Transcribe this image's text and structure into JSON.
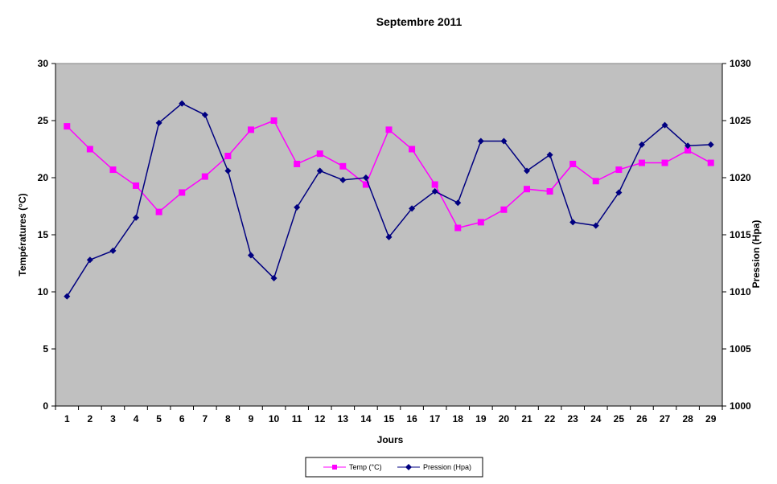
{
  "chart_data": {
    "type": "line",
    "title": "Septembre 2011",
    "xlabel": "Jours",
    "ylabel_left": "Températures (°C)",
    "ylabel_right": "Pression (Hpa)",
    "x": [
      1,
      2,
      3,
      4,
      5,
      6,
      7,
      8,
      9,
      10,
      11,
      12,
      13,
      14,
      15,
      16,
      17,
      18,
      19,
      20,
      21,
      22,
      23,
      24,
      25,
      26,
      27,
      28,
      29
    ],
    "x_tick_labels": [
      "1",
      "2",
      "3",
      "4",
      "5",
      "6",
      "7",
      "8",
      "9",
      "10",
      "11",
      "12",
      "13",
      "14",
      "15",
      "16",
      "17",
      "18",
      "19",
      "20",
      "21",
      "22",
      "23",
      "24",
      "25",
      "26",
      "27",
      "28",
      "29"
    ],
    "ylim_left": [
      0,
      30
    ],
    "y_ticks_left": [
      "0",
      "5",
      "10",
      "15",
      "20",
      "25",
      "30"
    ],
    "ylim_right": [
      1000,
      1030
    ],
    "y_ticks_right": [
      "1000",
      "1005",
      "1010",
      "1015",
      "1020",
      "1025",
      "1030"
    ],
    "grid": false,
    "plot_background": "#c0c0c0",
    "legend_position": "bottom",
    "series": [
      {
        "name": "Temp (°C)",
        "axis": "left",
        "color": "#ff00ff",
        "marker": "square",
        "values": [
          24.5,
          22.5,
          20.7,
          19.3,
          17.0,
          18.7,
          20.1,
          21.9,
          24.2,
          25.0,
          21.2,
          22.1,
          21.0,
          19.4,
          24.2,
          22.5,
          19.4,
          15.6,
          16.1,
          17.2,
          19.0,
          18.8,
          21.2,
          19.7,
          20.7,
          21.3,
          21.3,
          22.4,
          21.3
        ]
      },
      {
        "name": "Pression (Hpa)",
        "axis": "right",
        "color": "#000080",
        "marker": "diamond",
        "values": [
          1009.6,
          1012.8,
          1013.6,
          1016.5,
          1024.8,
          1026.5,
          1025.5,
          1020.6,
          1013.2,
          1011.2,
          1017.4,
          1020.6,
          1019.8,
          1020.0,
          1014.8,
          1017.3,
          1018.8,
          1017.8,
          1023.2,
          1023.2,
          1020.6,
          1022.0,
          1016.1,
          1015.8,
          1018.7,
          1022.9,
          1024.6,
          1022.8,
          1022.9
        ]
      }
    ]
  }
}
